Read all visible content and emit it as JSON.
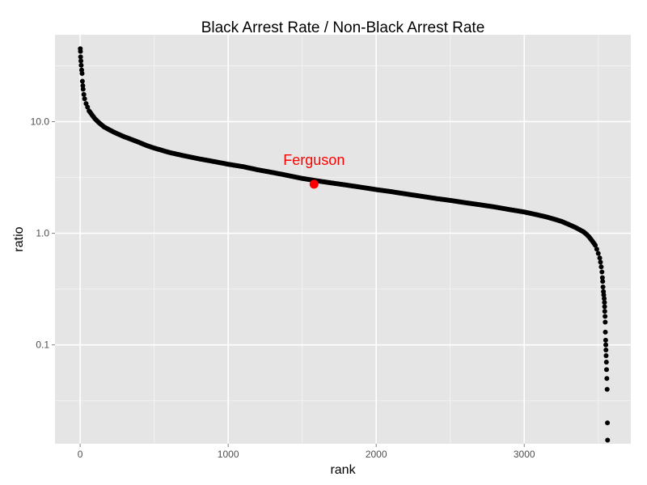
{
  "chart_data": {
    "type": "scatter",
    "title": "Black Arrest Rate / Non-Black Arrest Rate",
    "xlabel": "rank",
    "ylabel": "ratio",
    "xlim": [
      -170,
      3720
    ],
    "ylim": [
      0.013,
      60
    ],
    "y_scale": "log10",
    "grid": true,
    "x_ticks": [
      {
        "value": 0,
        "label": "0"
      },
      {
        "value": 1000,
        "label": "1000"
      },
      {
        "value": 2000,
        "label": "2000"
      },
      {
        "value": 3000,
        "label": "3000"
      }
    ],
    "y_ticks": [
      {
        "value": 10,
        "label": "10.0"
      },
      {
        "value": 1,
        "label": "1.0"
      },
      {
        "value": 0.1,
        "label": "0.1"
      }
    ],
    "y_minor_ticks": [
      31.6,
      3.16,
      0.316,
      0.0316
    ],
    "x_minor_ticks": [
      500,
      1500,
      2500,
      3500
    ],
    "series": [
      {
        "point_color": "#000000",
        "points": [
          [
            1,
            45.0
          ],
          [
            2,
            42.5
          ],
          [
            3,
            38.0
          ],
          [
            5,
            35.0
          ],
          [
            7,
            32.0
          ],
          [
            10,
            29.0
          ],
          [
            13,
            27.0
          ],
          [
            15,
            23.0
          ],
          [
            18,
            21.0
          ],
          [
            20,
            19.5
          ],
          [
            25,
            17.5
          ],
          [
            30,
            16.0
          ],
          [
            40,
            14.5
          ],
          [
            50,
            13.5
          ],
          [
            60,
            12.5
          ],
          [
            80,
            11.5
          ],
          [
            100,
            10.6
          ],
          [
            130,
            9.7
          ],
          [
            160,
            9.0
          ],
          [
            200,
            8.4
          ],
          [
            250,
            7.8
          ],
          [
            300,
            7.3
          ],
          [
            350,
            6.9
          ],
          [
            400,
            6.5
          ],
          [
            450,
            6.1
          ],
          [
            500,
            5.8
          ],
          [
            600,
            5.3
          ],
          [
            700,
            4.95
          ],
          [
            800,
            4.65
          ],
          [
            900,
            4.4
          ],
          [
            1000,
            4.15
          ],
          [
            1100,
            3.95
          ],
          [
            1200,
            3.7
          ],
          [
            1300,
            3.5
          ],
          [
            1400,
            3.3
          ],
          [
            1500,
            3.1
          ],
          [
            1600,
            2.95
          ],
          [
            1700,
            2.82
          ],
          [
            1800,
            2.7
          ],
          [
            1900,
            2.58
          ],
          [
            2000,
            2.46
          ],
          [
            2100,
            2.36
          ],
          [
            2200,
            2.25
          ],
          [
            2300,
            2.15
          ],
          [
            2400,
            2.05
          ],
          [
            2500,
            1.97
          ],
          [
            2600,
            1.88
          ],
          [
            2700,
            1.8
          ],
          [
            2800,
            1.72
          ],
          [
            2900,
            1.63
          ],
          [
            3000,
            1.55
          ],
          [
            3050,
            1.5
          ],
          [
            3100,
            1.45
          ],
          [
            3150,
            1.4
          ],
          [
            3200,
            1.34
          ],
          [
            3250,
            1.28
          ],
          [
            3300,
            1.2
          ],
          [
            3350,
            1.12
          ],
          [
            3400,
            1.03
          ],
          [
            3420,
            0.98
          ],
          [
            3440,
            0.92
          ],
          [
            3460,
            0.85
          ],
          [
            3480,
            0.78
          ],
          [
            3490,
            0.72
          ],
          [
            3500,
            0.66
          ],
          [
            3510,
            0.6
          ],
          [
            3515,
            0.55
          ],
          [
            3520,
            0.5
          ],
          [
            3525,
            0.45
          ],
          [
            3528,
            0.4
          ],
          [
            3530,
            0.37
          ],
          [
            3532,
            0.33
          ],
          [
            3535,
            0.3
          ],
          [
            3537,
            0.28
          ],
          [
            3540,
            0.26
          ],
          [
            3542,
            0.24
          ],
          [
            3543,
            0.22
          ],
          [
            3544,
            0.2
          ],
          [
            3546,
            0.18
          ],
          [
            3547,
            0.16
          ],
          [
            3548,
            0.13
          ],
          [
            3550,
            0.11
          ],
          [
            3551,
            0.1
          ],
          [
            3552,
            0.09
          ],
          [
            3553,
            0.08
          ],
          [
            3555,
            0.07
          ],
          [
            3556,
            0.06
          ],
          [
            3558,
            0.05
          ],
          [
            3560,
            0.04
          ],
          [
            3562,
            0.02
          ],
          [
            3563,
            0.014
          ]
        ]
      }
    ],
    "highlight": {
      "label": "Ferguson",
      "x": 1580,
      "y": 2.75,
      "color": "#ff0000"
    },
    "colors": {
      "panel_background": "#e5e5e5",
      "grid_major": "#ffffff",
      "grid_minor": "#f2f2f2"
    }
  }
}
